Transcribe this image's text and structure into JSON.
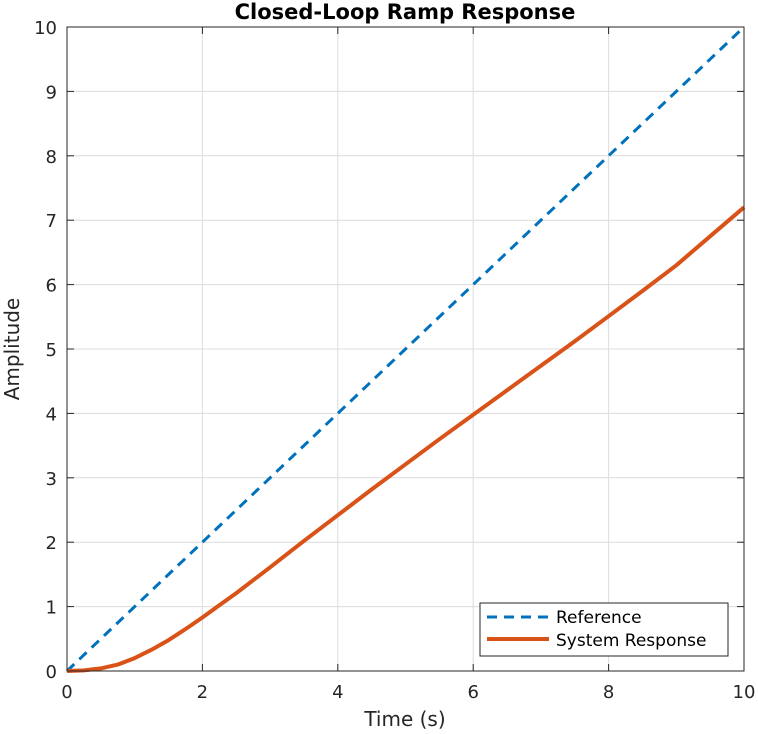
{
  "chart_data": {
    "type": "line",
    "title": "Closed-Loop Ramp Response",
    "xlabel": "Time (s)",
    "ylabel": "Amplitude",
    "xlim": [
      0,
      10
    ],
    "ylim": [
      0,
      10
    ],
    "xticks": [
      0,
      2,
      4,
      6,
      8,
      10
    ],
    "yticks": [
      0,
      1,
      2,
      3,
      4,
      5,
      6,
      7,
      8,
      9,
      10
    ],
    "xtick_labels": [
      "0",
      "2",
      "4",
      "6",
      "8",
      "10"
    ],
    "ytick_labels": [
      "0",
      "1",
      "2",
      "3",
      "4",
      "5",
      "6",
      "7",
      "8",
      "9",
      "10"
    ],
    "grid": true,
    "legend_position": "bottom-right",
    "series": [
      {
        "name": "Reference",
        "style": "dashed",
        "color": "#0072bd",
        "x": [
          0,
          10
        ],
        "y": [
          0,
          10
        ]
      },
      {
        "name": "System Response",
        "style": "solid",
        "color": "#d95319",
        "x": [
          0,
          0.25,
          0.5,
          0.75,
          1,
          1.25,
          1.5,
          1.75,
          2,
          2.25,
          2.5,
          2.75,
          3,
          3.5,
          4,
          4.5,
          5,
          5.5,
          6,
          6.5,
          7,
          7.5,
          8,
          8.5,
          9,
          9.5,
          10
        ],
        "y": [
          0,
          0.01,
          0.04,
          0.1,
          0.2,
          0.33,
          0.48,
          0.65,
          0.83,
          1.02,
          1.21,
          1.41,
          1.61,
          2.02,
          2.42,
          2.82,
          3.21,
          3.6,
          3.98,
          4.36,
          4.74,
          5.12,
          5.51,
          5.9,
          6.3,
          6.75,
          7.2
        ]
      }
    ]
  }
}
